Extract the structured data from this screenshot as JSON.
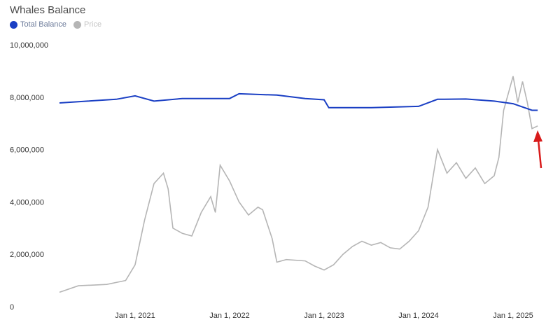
{
  "chart_data": {
    "type": "line",
    "title": "Whales Balance",
    "legend_placement": "top-left",
    "grid": false,
    "ylim": [
      0,
      10000000
    ],
    "yticks": [
      0,
      2000000,
      4000000,
      6000000,
      8000000,
      10000000
    ],
    "ytick_labels": [
      "0",
      "2,000,000",
      "4,000,000",
      "6,000,000",
      "8,000,000",
      "10,000,000"
    ],
    "xtick_labels": [
      "Jan 1, 2021",
      "Jan 1, 2022",
      "Jan 1, 2023",
      "Jan 1, 2024",
      "Jan 1, 2025"
    ],
    "xticks": [
      2021,
      2022,
      2023,
      2024,
      2025
    ],
    "xlim": [
      2020.2,
      2025.26
    ],
    "series": [
      {
        "name": "Total Balance",
        "color": "#1a3fc4",
        "x": [
          2020.2,
          2020.5,
          2020.8,
          2021.0,
          2021.2,
          2021.5,
          2021.8,
          2022.0,
          2022.1,
          2022.5,
          2022.8,
          2023.0,
          2023.05,
          2023.5,
          2024.0,
          2024.2,
          2024.5,
          2024.8,
          2025.0,
          2025.2,
          2025.26
        ],
        "values": [
          7780000,
          7850000,
          7920000,
          8050000,
          7850000,
          7950000,
          7950000,
          7950000,
          8130000,
          8080000,
          7950000,
          7900000,
          7600000,
          7600000,
          7650000,
          7920000,
          7930000,
          7850000,
          7750000,
          7500000,
          7500000
        ]
      },
      {
        "name": "Price",
        "color": "#b5b5b5",
        "x": [
          2020.2,
          2020.4,
          2020.7,
          2020.9,
          2021.0,
          2021.1,
          2021.2,
          2021.3,
          2021.35,
          2021.4,
          2021.5,
          2021.6,
          2021.7,
          2021.8,
          2021.85,
          2021.9,
          2022.0,
          2022.1,
          2022.2,
          2022.3,
          2022.35,
          2022.45,
          2022.5,
          2022.6,
          2022.8,
          2022.9,
          2023.0,
          2023.1,
          2023.2,
          2023.3,
          2023.4,
          2023.5,
          2023.6,
          2023.7,
          2023.8,
          2023.9,
          2024.0,
          2024.1,
          2024.2,
          2024.3,
          2024.4,
          2024.5,
          2024.6,
          2024.7,
          2024.8,
          2024.85,
          2024.9,
          2025.0,
          2025.05,
          2025.1,
          2025.15,
          2025.2,
          2025.26
        ],
        "values": [
          550000,
          800000,
          850000,
          1000000,
          1600000,
          3300000,
          4700000,
          5100000,
          4500000,
          3000000,
          2800000,
          2700000,
          3600000,
          4200000,
          3600000,
          5400000,
          4800000,
          4000000,
          3500000,
          3800000,
          3700000,
          2600000,
          1700000,
          1800000,
          1750000,
          1550000,
          1400000,
          1600000,
          2000000,
          2300000,
          2500000,
          2350000,
          2450000,
          2250000,
          2200000,
          2500000,
          2900000,
          3800000,
          6000000,
          5100000,
          5500000,
          4900000,
          5300000,
          4700000,
          5000000,
          5700000,
          7500000,
          8800000,
          7800000,
          8600000,
          7800000,
          6800000,
          6900000
        ]
      }
    ],
    "annotation": {
      "type": "arrow",
      "color": "#d81b1b",
      "points_to": "latest value"
    }
  }
}
